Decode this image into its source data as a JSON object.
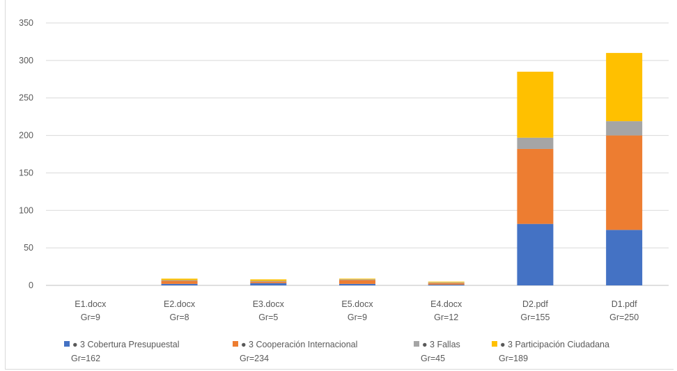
{
  "chart_data": {
    "type": "bar",
    "stacked": true,
    "title": "",
    "xlabel": "",
    "ylabel": "",
    "ylim": [
      0,
      350
    ],
    "yticks": [
      0,
      50,
      100,
      150,
      200,
      250,
      300,
      350
    ],
    "grid": true,
    "legend_position": "bottom",
    "categories": [
      {
        "name": "E1.docx",
        "sub": "Gr=9"
      },
      {
        "name": "E2.docx",
        "sub": "Gr=8"
      },
      {
        "name": "E3.docx",
        "sub": "Gr=5"
      },
      {
        "name": "E5.docx",
        "sub": "Gr=9"
      },
      {
        "name": "E4.docx",
        "sub": "Gr=12"
      },
      {
        "name": "D2.pdf",
        "sub": "Gr=155"
      },
      {
        "name": "D1.pdf",
        "sub": "Gr=250"
      }
    ],
    "series": [
      {
        "name": "● 3 Cobertura Presupuestal",
        "sub": "Gr=162",
        "color": "#4472c4",
        "values": [
          0,
          2,
          3,
          2,
          1,
          82,
          74
        ]
      },
      {
        "name": "● 3 Cooperación Internacional",
        "sub": "Gr=234",
        "color": "#ed7d31",
        "values": [
          0,
          4,
          2,
          5,
          2,
          100,
          126
        ]
      },
      {
        "name": "● 3 Fallas",
        "sub": "Gr=45",
        "color": "#a5a5a5",
        "values": [
          0,
          1,
          1,
          1,
          1,
          15,
          19
        ]
      },
      {
        "name": "● 3 Participación Ciudadana",
        "sub": "Gr=189",
        "color": "#ffc000",
        "values": [
          0,
          2,
          2,
          1,
          1,
          88,
          91
        ]
      }
    ]
  }
}
